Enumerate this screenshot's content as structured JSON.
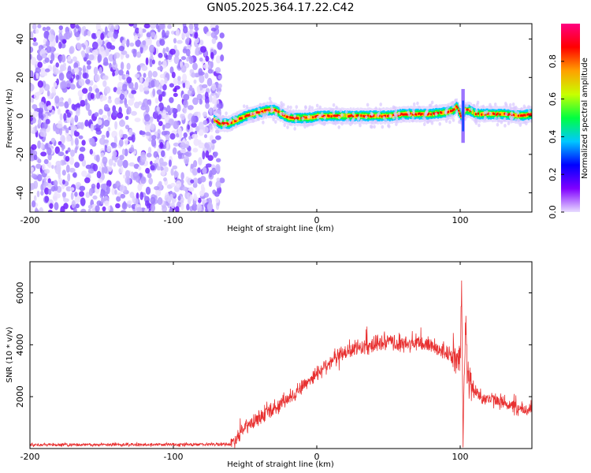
{
  "title": "GN05.2025.364.17.22.C42",
  "chart_data": [
    {
      "type": "heatmap",
      "xlabel": "Height of straight line (km)",
      "ylabel": "Frequency (Hz)",
      "xlim": [
        -200,
        150
      ],
      "ylim": [
        -50,
        48
      ],
      "x_ticks": [
        -200,
        -100,
        0,
        100
      ],
      "y_ticks": [
        -40,
        -20,
        0,
        20,
        40
      ],
      "colorbar": {
        "label": "Normalized spectral amplitude",
        "range": [
          0,
          1
        ],
        "ticks": [
          "0.0",
          "0.2",
          "0.4",
          "0.6",
          "0.8"
        ],
        "tick_values": [
          0.0,
          0.2,
          0.4,
          0.6,
          0.8
        ],
        "colors": [
          "#e8dcff",
          "#8000ff",
          "#0000ff",
          "#00c8ff",
          "#00ff40",
          "#c8ff00",
          "#ffa000",
          "#ff0000",
          "#ff0080"
        ]
      },
      "noise_region_x": [
        -200,
        -68
      ],
      "signal_track": {
        "x": [
          -72,
          -68,
          -62,
          -56,
          -50,
          -45,
          -40,
          -35,
          -30,
          -25,
          -20,
          -15,
          -10,
          -5,
          0,
          10,
          20,
          30,
          40,
          50,
          60,
          70,
          80,
          90,
          95,
          97,
          100,
          103,
          106,
          110,
          120,
          130,
          140,
          150
        ],
        "freq": [
          -2,
          -4,
          -4,
          -2,
          0,
          1,
          2,
          3,
          3,
          1,
          -1,
          -1,
          -1,
          -1,
          0,
          0,
          0,
          0,
          0,
          0,
          1,
          1,
          1,
          2,
          3,
          5,
          0,
          3,
          3,
          1,
          1,
          1,
          0,
          1
        ]
      },
      "spur_at_x": 102,
      "spur_freq_range": [
        -14,
        14
      ]
    },
    {
      "type": "line",
      "xlabel": "Height of straight line (km)",
      "ylabel": "SNR (10 * v/v)",
      "xlim": [
        -200,
        150
      ],
      "ylim": [
        0,
        7200
      ],
      "x_ticks": [
        -200,
        -100,
        0,
        100
      ],
      "y_ticks": [
        2000,
        4000,
        6000
      ],
      "color": "#e83030",
      "series": [
        {
          "x": [
            -200,
            -150,
            -100,
            -60,
            -58,
            -50,
            -40,
            -30,
            -20,
            -10,
            0,
            10,
            20,
            30,
            40,
            50,
            60,
            70,
            80,
            90,
            95,
            100,
            101,
            102,
            103,
            104,
            105,
            106,
            110,
            115,
            120,
            130,
            140,
            150
          ],
          "y": [
            150,
            150,
            150,
            170,
            300,
            800,
            1200,
            1500,
            1900,
            2400,
            2900,
            3400,
            3700,
            3900,
            4000,
            4100,
            4000,
            4050,
            4000,
            3700,
            3500,
            3200,
            6500,
            700,
            3500,
            5200,
            2800,
            2600,
            2200,
            2000,
            1900,
            1800,
            1500,
            1500
          ]
        }
      ]
    }
  ]
}
